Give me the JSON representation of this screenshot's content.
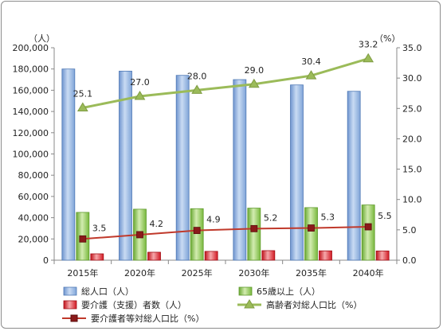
{
  "chart_data": {
    "type": "bar",
    "categories": [
      "2015年",
      "2020年",
      "2025年",
      "2030年",
      "2035年",
      "2040年"
    ],
    "y_left": {
      "unit": "（人）",
      "ylim": [
        0,
        200000
      ],
      "ticks": [
        "0",
        "20,000",
        "40,000",
        "60,000",
        "80,000",
        "100,000",
        "120,000",
        "140,000",
        "160,000",
        "180,000",
        "200,000"
      ]
    },
    "y_right": {
      "unit": "（%）",
      "ylim": [
        0,
        35
      ],
      "ticks": [
        "0.0",
        "5.0",
        "10.0",
        "15.0",
        "20.0",
        "25.0",
        "30.0",
        "35.0"
      ]
    },
    "series": [
      {
        "name": "総人口（人）",
        "kind": "bar",
        "axis": "left",
        "color": "#8EB4E3",
        "values": [
          180000,
          178000,
          174000,
          170000,
          165000,
          159000
        ]
      },
      {
        "name": "65歳以上（人）",
        "kind": "bar",
        "axis": "left",
        "color": "#92D050",
        "values": [
          45000,
          48000,
          48500,
          49000,
          49500,
          52000
        ]
      },
      {
        "name": "要介護（支援）者数（人）",
        "kind": "bar",
        "axis": "left",
        "color": "#E8262F",
        "values": [
          6000,
          7500,
          8300,
          9000,
          8800,
          8700
        ]
      },
      {
        "name": "高齢者対総人口比（%）",
        "kind": "line",
        "axis": "right",
        "color": "#9BBB59",
        "marker": "triangle",
        "values": [
          25.1,
          27.0,
          28.0,
          29.0,
          30.4,
          33.2
        ],
        "labels": [
          "25.1",
          "27.0",
          "28.0",
          "29.0",
          "30.4",
          "33.2"
        ]
      },
      {
        "name": "要介護者等対総人口比（%）",
        "kind": "line",
        "axis": "right",
        "color": "#C0392B",
        "marker": "square",
        "values": [
          3.5,
          4.2,
          4.9,
          5.2,
          5.3,
          5.5
        ],
        "labels": [
          "3.5",
          "4.2",
          "4.9",
          "5.2",
          "5.3",
          "5.5"
        ]
      }
    ],
    "legend_position": "bottom",
    "grid": false
  }
}
